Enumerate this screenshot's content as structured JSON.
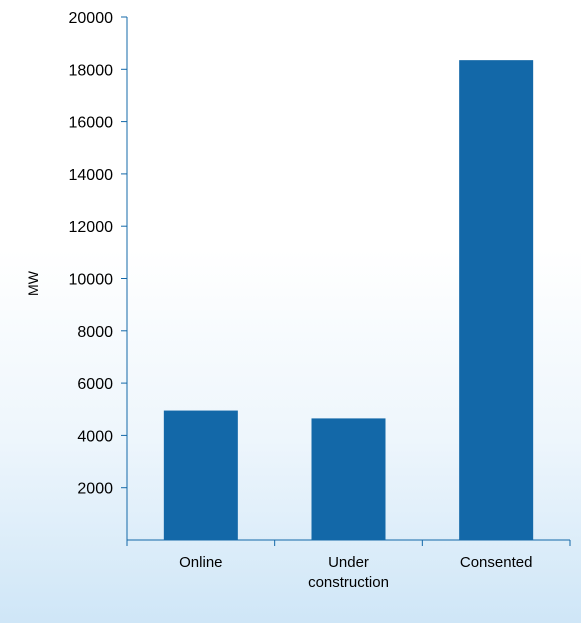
{
  "chart_data": {
    "type": "bar",
    "title": "",
    "xlabel": "",
    "ylabel": "MW",
    "categories": [
      [
        "Online"
      ],
      [
        "Under",
        "construction"
      ],
      [
        "Consented"
      ]
    ],
    "values": [
      4950,
      4650,
      18350
    ],
    "ylim": [
      0,
      20000
    ],
    "yticks": [
      2000,
      4000,
      6000,
      8000,
      10000,
      12000,
      14000,
      16000,
      18000,
      20000
    ],
    "grid": false,
    "legend": "none",
    "colors": {
      "bar": "#1368a8",
      "axis": "#1368a8"
    }
  }
}
